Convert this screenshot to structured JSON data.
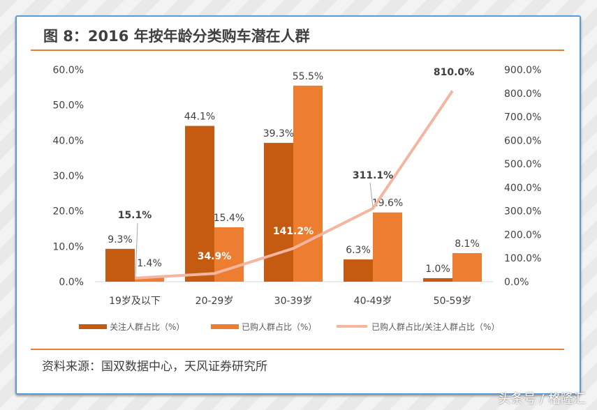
{
  "title": "图 8：2016 年按年龄分类购车潜在人群",
  "source": "资料来源：国双数据中心，天风证券研究所",
  "watermark": "头条号 / 格隆汇",
  "chart_data": {
    "type": "bar",
    "categories": [
      "19岁及以下",
      "20-29岁",
      "30-39岁",
      "40-49岁",
      "50-59岁"
    ],
    "series": [
      {
        "name": "关注人群占比（%）",
        "type": "bar",
        "axis": "left",
        "color": "#c55a11",
        "values": [
          9.3,
          44.1,
          39.3,
          6.3,
          1.0
        ],
        "labels": [
          "9.3%",
          "44.1%",
          "39.3%",
          "6.3%",
          "1.0%"
        ]
      },
      {
        "name": "已购人群占比（%）",
        "type": "bar",
        "axis": "left",
        "color": "#ed7d31",
        "values": [
          1.4,
          15.4,
          55.5,
          19.6,
          8.1
        ],
        "labels": [
          "1.4%",
          "15.4%",
          "55.5%",
          "19.6%",
          "8.1%"
        ]
      },
      {
        "name": "已购人群占比/关注人群占比（%）",
        "type": "line",
        "axis": "right",
        "color": "#f4b6a0",
        "values": [
          15.1,
          34.9,
          141.2,
          311.1,
          810.0
        ],
        "labels": [
          "15.1%",
          "34.9%",
          "141.2%",
          "311.1%",
          "810.0%"
        ]
      }
    ],
    "yleft": {
      "lim": [
        0,
        60
      ],
      "ticks": [
        "0.0%",
        "10.0%",
        "20.0%",
        "30.0%",
        "40.0%",
        "50.0%",
        "60.0%"
      ]
    },
    "yright": {
      "lim": [
        0,
        900
      ],
      "ticks": [
        "0.0%",
        "100.0%",
        "200.0%",
        "300.0%",
        "400.0%",
        "500.0%",
        "600.0%",
        "700.0%",
        "800.0%",
        "900.0%"
      ]
    },
    "grid": false,
    "legend": "bottom"
  }
}
